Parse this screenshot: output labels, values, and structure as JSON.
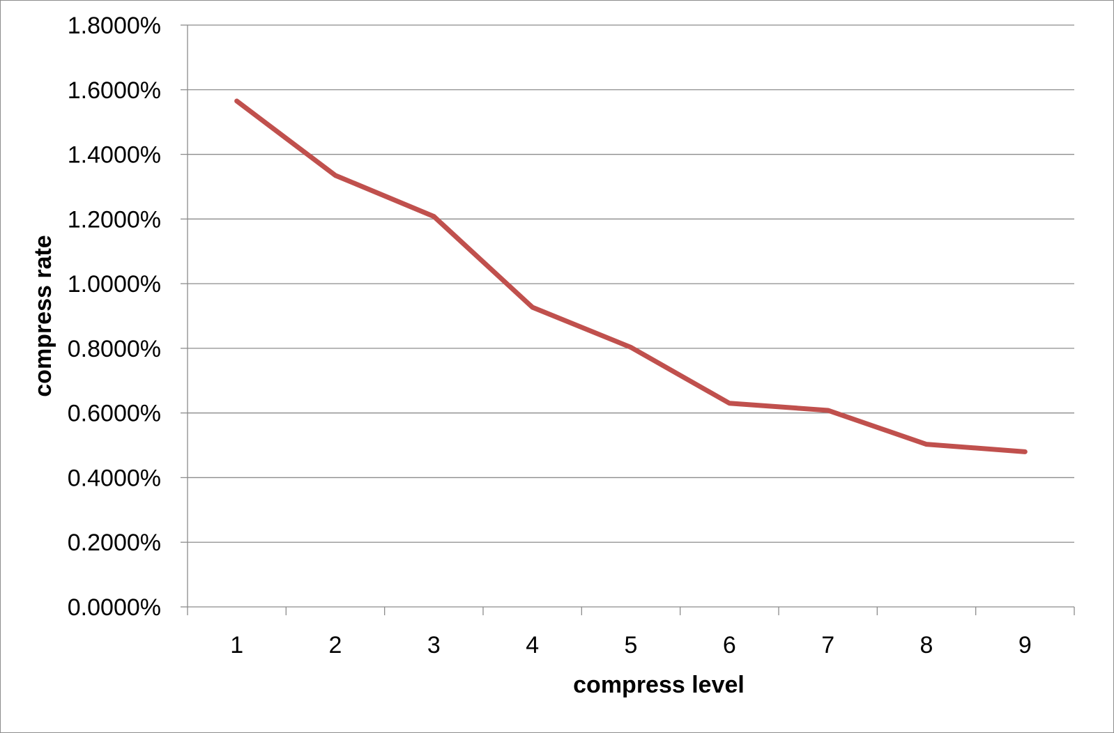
{
  "chart_data": {
    "type": "line",
    "title": "",
    "xlabel": "compress level",
    "ylabel": "compress rate",
    "categories": [
      "1",
      "2",
      "3",
      "4",
      "5",
      "6",
      "7",
      "8",
      "9"
    ],
    "series": [
      {
        "values": [
          1.565,
          1.335,
          1.208,
          0.927,
          0.803,
          0.63,
          0.608,
          0.503,
          0.48
        ]
      }
    ],
    "y_unit": "%",
    "ylim": [
      0,
      1.8
    ],
    "yticks": [
      0,
      0.2,
      0.4,
      0.6,
      0.8,
      1.0,
      1.2,
      1.4,
      1.6,
      1.8
    ],
    "ytick_labels": [
      "0.0000%",
      "0.2000%",
      "0.4000%",
      "0.6000%",
      "0.8000%",
      "1.0000%",
      "1.2000%",
      "1.4000%",
      "1.6000%",
      "1.8000%"
    ],
    "grid": true,
    "legend": "none",
    "line_color": "#c0504d",
    "grid_color": "#8c8c8c"
  }
}
